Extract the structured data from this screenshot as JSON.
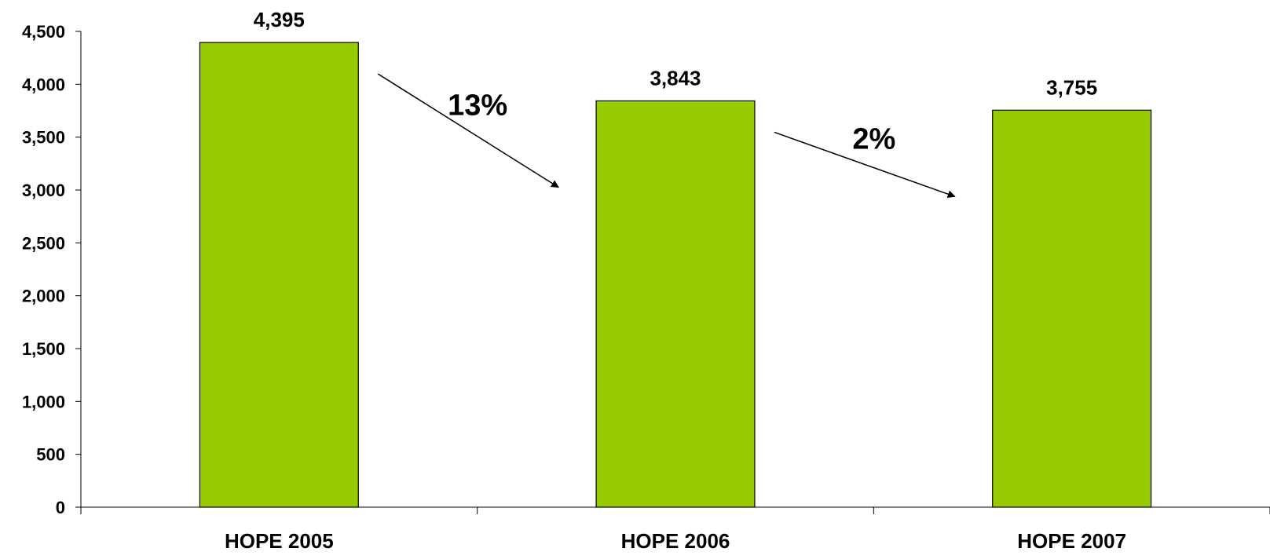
{
  "chart_data": {
    "type": "bar",
    "categories": [
      "HOPE 2005",
      "HOPE 2006",
      "HOPE 2007"
    ],
    "values": [
      4395,
      3843,
      3755
    ],
    "data_labels": [
      "4,395",
      "3,843",
      "3,755"
    ],
    "ylim": [
      0,
      4500
    ],
    "yticks": [
      0,
      500,
      1000,
      1500,
      2000,
      2500,
      3000,
      3500,
      4000,
      4500
    ],
    "ytick_labels": [
      "0",
      "500",
      "1,000",
      "1,500",
      "2,000",
      "2,500",
      "3,000",
      "3,500",
      "4,000",
      "4,500"
    ],
    "bar_color": "#99CC00",
    "grid": false,
    "annotations": [
      {
        "text": "13%",
        "from_category": 0,
        "to_category": 1
      },
      {
        "text": "2%",
        "from_category": 1,
        "to_category": 2
      }
    ]
  }
}
